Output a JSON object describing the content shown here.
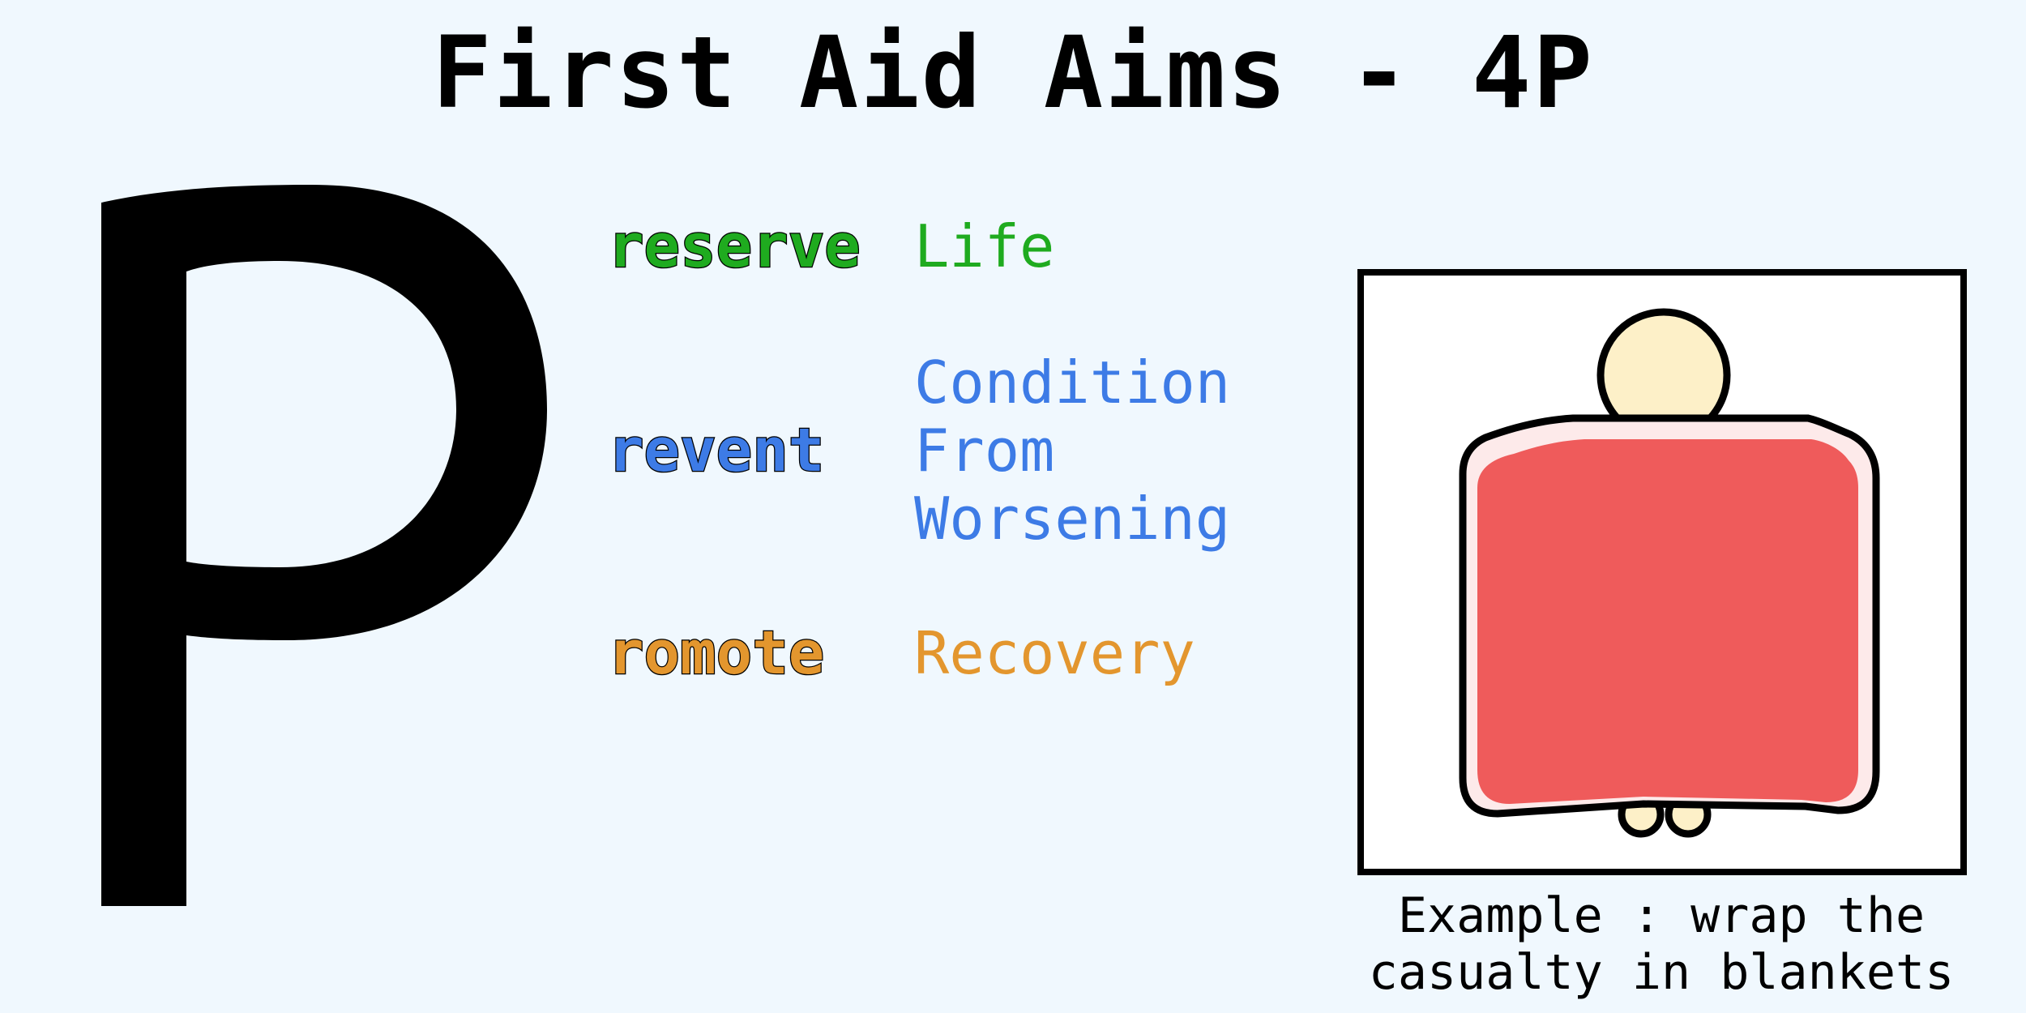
{
  "title": "First Aid Aims - 4P",
  "big_letter": "P",
  "colors": {
    "background": "#f0f8fe",
    "preserve": "#1fab1f",
    "prevent": "#3d7be6",
    "promote": "#e3962e",
    "blanket": "#ef5b5b",
    "blanket_edge": "#fdeaea",
    "head": "#fdf0c8"
  },
  "rows": [
    {
      "keyword": "reserve",
      "meaning": "Life",
      "color": "#1fab1f"
    },
    {
      "keyword": "revent",
      "meaning": "Condition\nFrom\nWorsening",
      "color": "#3d7be6"
    },
    {
      "keyword": "romote",
      "meaning": "Recovery",
      "color": "#e3962e"
    }
  ],
  "illustration": {
    "icon": "casualty-wrapped-in-blanket-icon"
  },
  "caption": "Example : wrap the\ncasualty in blankets"
}
